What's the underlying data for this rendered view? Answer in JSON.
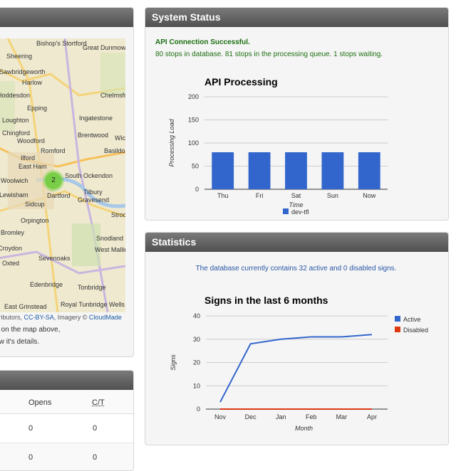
{
  "map": {
    "places": [
      "Bishop's Stortford",
      "Great Dunmow",
      "Harlow",
      "Chelmsford",
      "Epping",
      "Ingatestone",
      "Chingford",
      "Brentwood",
      "Wickford",
      "Woodford",
      "Romford",
      "Basildon",
      "Ilford",
      "East Ham",
      "South Ockendon",
      "Dartford",
      "Tilbury",
      "Gravesend",
      "Sidcup",
      "Orpington",
      "Strood",
      "Snodland",
      "Sevenoaks",
      "West Malling",
      "Oxted",
      "Edenbridge",
      "Tonbridge",
      "Royal Tunbridge Wells",
      "East Grinstead",
      "Sheering",
      "Sawbridgeworth",
      "Hoddesdon",
      "Loughton",
      "Woolwich",
      "Lewisham",
      "Bromley",
      "Croydon"
    ],
    "cluster_count": "2",
    "attribution_prefix": "ntributors,",
    "attribution_license": "CC-BY-SA",
    "attribution_imagery": ", Imagery ©",
    "attribution_provider": "CloudMade",
    "note_line1": "in on the map above,",
    "note_line2": "iew it's details."
  },
  "table": {
    "headers": [
      "Opens",
      "C/T"
    ],
    "rows": [
      [
        "0",
        "0"
      ],
      [
        "0",
        "0"
      ]
    ]
  },
  "status": {
    "title": "System Status",
    "ok_title": "API Connection Successful.",
    "ok_text": "80 stops in database. 81 stops in the processing queue. 1 stops waiting."
  },
  "statistics": {
    "title": "Statistics",
    "summary": "The database currently contains 32 active and 0 disabled signs."
  },
  "chart_data": [
    {
      "type": "bar",
      "title": "API Processing",
      "xlabel": "Time",
      "ylabel": "Processing Load",
      "categories": [
        "Thu",
        "Fri",
        "Sat",
        "Sun",
        "Now"
      ],
      "series": [
        {
          "name": "dev-tfl",
          "values": [
            80,
            80,
            80,
            80,
            80
          ],
          "color": "#3366cc"
        }
      ],
      "ylim": [
        0,
        200
      ],
      "yticks": [
        0,
        50,
        100,
        150,
        200
      ],
      "legend": "bottom"
    },
    {
      "type": "line",
      "title": "Signs in the last 6 months",
      "xlabel": "Month",
      "ylabel": "Signs",
      "categories": [
        "Nov",
        "Dec",
        "Jan",
        "Feb",
        "Mar",
        "Apr"
      ],
      "series": [
        {
          "name": "Active",
          "values": [
            3,
            28,
            30,
            31,
            31,
            32
          ],
          "color": "#3366cc"
        },
        {
          "name": "Disabled",
          "values": [
            0,
            0,
            0,
            0,
            0,
            0
          ],
          "color": "#dc3912"
        }
      ],
      "ylim": [
        0,
        40
      ],
      "yticks": [
        0,
        10,
        20,
        30,
        40
      ],
      "legend": "right"
    }
  ]
}
